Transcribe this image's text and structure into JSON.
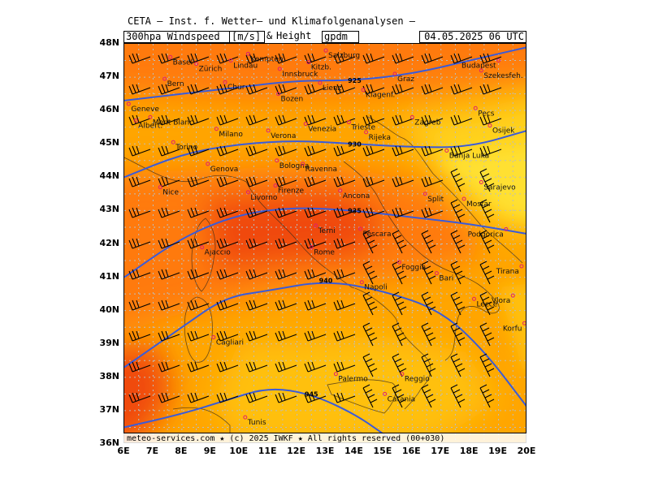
{
  "header": {
    "title": "CETA – Inst. f. Wetter– und Klimafolgenanalysen –",
    "parameter": "300hpa Windspeed",
    "unit_speed": "[m/s]",
    "amp": "&",
    "height": "Height",
    "unit_height": "gpdm",
    "datetime": "04.05.2025 06 UTC"
  },
  "map": {
    "lon_range": [
      6,
      20
    ],
    "lat_range": [
      36,
      48
    ],
    "lat_ticks": [
      "48N",
      "47N",
      "46N",
      "45N",
      "44N",
      "43N",
      "42N",
      "41N",
      "40N",
      "39N",
      "38N",
      "37N",
      "36N"
    ],
    "lon_ticks": [
      "6E",
      "7E",
      "8E",
      "9E",
      "10E",
      "11E",
      "12E",
      "13E",
      "14E",
      "15E",
      "16E",
      "17E",
      "18E",
      "19E",
      "20E"
    ],
    "colors": {
      "contour": "#3a5bd9",
      "grid": "#bdbdbd",
      "city_dot": "#e0206c",
      "speed_low": "#ffd21a",
      "speed_mid": "#ffa500",
      "speed_high": "#ff7a10",
      "speed_max": "#f04a0a"
    },
    "height_contours": [
      {
        "label": "925",
        "points": [
          [
            6,
            46.3
          ],
          [
            8,
            46.5
          ],
          [
            10,
            46.7
          ],
          [
            12,
            46.9
          ],
          [
            14,
            46.9
          ],
          [
            16,
            47.1
          ],
          [
            18,
            47.5
          ],
          [
            20,
            47.9
          ]
        ]
      },
      {
        "label": "930",
        "points": [
          [
            6,
            44.0
          ],
          [
            8,
            44.7
          ],
          [
            10,
            45.0
          ],
          [
            12,
            45.1
          ],
          [
            14,
            45.0
          ],
          [
            16,
            44.9
          ],
          [
            18,
            44.9
          ],
          [
            20,
            45.4
          ]
        ]
      },
      {
        "label": "935",
        "points": [
          [
            6,
            41.0
          ],
          [
            8,
            42.2
          ],
          [
            10,
            42.9
          ],
          [
            12,
            43.1
          ],
          [
            14,
            43.0
          ],
          [
            16,
            42.8
          ],
          [
            18,
            42.6
          ],
          [
            20,
            42.3
          ]
        ]
      },
      {
        "label": "940",
        "points": [
          [
            6,
            38.3
          ],
          [
            8,
            39.5
          ],
          [
            9.5,
            40.4
          ],
          [
            11,
            40.6
          ],
          [
            13,
            40.9
          ],
          [
            15,
            40.6
          ],
          [
            17,
            40.0
          ],
          [
            18.5,
            38.8
          ],
          [
            20,
            37.1
          ]
        ]
      },
      {
        "label": "945",
        "points": [
          [
            6,
            36.5
          ],
          [
            8,
            36.9
          ],
          [
            9.5,
            37.3
          ],
          [
            11,
            37.7
          ],
          [
            12.5,
            37.5
          ],
          [
            14,
            36.9
          ],
          [
            15,
            36.3
          ],
          [
            15.5,
            36.0
          ]
        ]
      }
    ],
    "cities": [
      {
        "name": "Basel",
        "lon": 7.6,
        "lat": 47.6
      },
      {
        "name": "Zürich",
        "lon": 8.5,
        "lat": 47.4
      },
      {
        "name": "Lindau",
        "lon": 9.7,
        "lat": 47.5
      },
      {
        "name": "Kempten",
        "lon": 10.3,
        "lat": 47.7
      },
      {
        "name": "Salzburg",
        "lon": 13.0,
        "lat": 47.8
      },
      {
        "name": "Kitzb.",
        "lon": 12.4,
        "lat": 47.45
      },
      {
        "name": "Innsbruck",
        "lon": 11.4,
        "lat": 47.25
      },
      {
        "name": "Graz",
        "lon": 15.4,
        "lat": 47.1
      },
      {
        "name": "Budapest",
        "lon": 19.0,
        "lat": 47.5
      },
      {
        "name": "Szekesfeh.",
        "lon": 18.4,
        "lat": 47.2
      },
      {
        "name": "Bern",
        "lon": 7.4,
        "lat": 46.95
      },
      {
        "name": "Chur",
        "lon": 9.5,
        "lat": 46.85
      },
      {
        "name": "Lienz",
        "lon": 12.8,
        "lat": 46.83
      },
      {
        "name": "Bozen",
        "lon": 11.35,
        "lat": 46.5
      },
      {
        "name": "Klagenf.",
        "lon": 14.3,
        "lat": 46.62
      },
      {
        "name": "Geneve",
        "lon": 6.15,
        "lat": 46.2
      },
      {
        "name": "Pecs",
        "lon": 18.2,
        "lat": 46.07
      },
      {
        "name": "Albert.",
        "lon": 6.4,
        "lat": 45.7
      },
      {
        "name": "Mont Blanc",
        "lon": 6.9,
        "lat": 45.8
      },
      {
        "name": "Milano",
        "lon": 9.2,
        "lat": 45.45
      },
      {
        "name": "Verona",
        "lon": 11.0,
        "lat": 45.4
      },
      {
        "name": "Venezia",
        "lon": 12.3,
        "lat": 45.6
      },
      {
        "name": "Trieste",
        "lon": 13.8,
        "lat": 45.65
      },
      {
        "name": "Rijeka",
        "lon": 14.4,
        "lat": 45.35
      },
      {
        "name": "Zagreb",
        "lon": 16.0,
        "lat": 45.8
      },
      {
        "name": "Osijek",
        "lon": 18.7,
        "lat": 45.55
      },
      {
        "name": "Torino",
        "lon": 7.7,
        "lat": 45.05
      },
      {
        "name": "Genova",
        "lon": 8.9,
        "lat": 44.4
      },
      {
        "name": "Bologna",
        "lon": 11.3,
        "lat": 44.5
      },
      {
        "name": "Ravenna",
        "lon": 12.2,
        "lat": 44.4
      },
      {
        "name": "Banja Luka",
        "lon": 17.2,
        "lat": 44.8
      },
      {
        "name": "Sarajevo",
        "lon": 18.4,
        "lat": 43.85
      },
      {
        "name": "Nice",
        "lon": 7.25,
        "lat": 43.7
      },
      {
        "name": "Firenze",
        "lon": 11.25,
        "lat": 43.75
      },
      {
        "name": "Livorno",
        "lon": 10.3,
        "lat": 43.55
      },
      {
        "name": "Ancona",
        "lon": 13.5,
        "lat": 43.6
      },
      {
        "name": "Split",
        "lon": 16.45,
        "lat": 43.5
      },
      {
        "name": "Mostar",
        "lon": 17.8,
        "lat": 43.35
      },
      {
        "name": "Terni",
        "lon": 12.65,
        "lat": 42.55
      },
      {
        "name": "Pescara",
        "lon": 14.2,
        "lat": 42.45
      },
      {
        "name": "Podgorica",
        "lon": 19.26,
        "lat": 42.44
      },
      {
        "name": "Ajaccio",
        "lon": 8.7,
        "lat": 41.9
      },
      {
        "name": "Rome",
        "lon": 12.5,
        "lat": 41.9
      },
      {
        "name": "Foggia",
        "lon": 15.55,
        "lat": 41.45
      },
      {
        "name": "Tirana",
        "lon": 19.8,
        "lat": 41.33
      },
      {
        "name": "Bari",
        "lon": 16.85,
        "lat": 41.12
      },
      {
        "name": "Napoli",
        "lon": 14.25,
        "lat": 40.85
      },
      {
        "name": "Lecce",
        "lon": 18.15,
        "lat": 40.35
      },
      {
        "name": "Vlora",
        "lon": 19.5,
        "lat": 40.45
      },
      {
        "name": "Korfu",
        "lon": 19.9,
        "lat": 39.62
      },
      {
        "name": "Cagliari",
        "lon": 9.1,
        "lat": 39.2
      },
      {
        "name": "Reggio",
        "lon": 15.65,
        "lat": 38.1
      },
      {
        "name": "Palermo",
        "lon": 13.35,
        "lat": 38.1
      },
      {
        "name": "Catania",
        "lon": 15.05,
        "lat": 37.5
      },
      {
        "name": "Tunis",
        "lon": 10.2,
        "lat": 36.8
      }
    ]
  },
  "footer": {
    "text": "meteo-services.com ★ (c) 2025 IWKF ★ All rights reserved (00+030)"
  }
}
